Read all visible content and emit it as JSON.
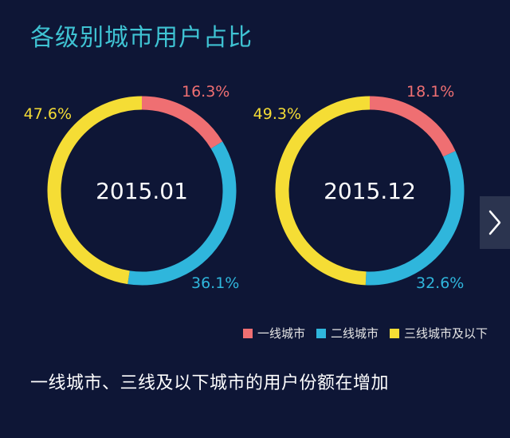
{
  "title": "各级别城市用户占比",
  "caption": "一线城市、三线及以下城市的用户份额在增加",
  "colors": {
    "tier1": "#ef6f72",
    "tier2": "#2fb6dc",
    "tier3": "#f5dd35",
    "background": "#0e1636",
    "title": "#3fc3d3"
  },
  "next_icon": "chevron-right-icon",
  "chart_data": [
    {
      "type": "pie",
      "center_label": "2015.01",
      "series": [
        {
          "name": "一线城市",
          "value": 16.3,
          "label": "16.3%"
        },
        {
          "name": "二线城市",
          "value": 36.1,
          "label": "36.1%"
        },
        {
          "name": "三线城市及以下",
          "value": 47.6,
          "label": "47.6%"
        }
      ]
    },
    {
      "type": "pie",
      "center_label": "2015.12",
      "series": [
        {
          "name": "一线城市",
          "value": 18.1,
          "label": "18.1%"
        },
        {
          "name": "二线城市",
          "value": 32.6,
          "label": "32.6%"
        },
        {
          "name": "三线城市及以下",
          "value": 49.3,
          "label": "49.3%"
        }
      ]
    }
  ],
  "legend": [
    {
      "label": "一线城市"
    },
    {
      "label": "二线城市"
    },
    {
      "label": "三线城市及以下"
    }
  ]
}
